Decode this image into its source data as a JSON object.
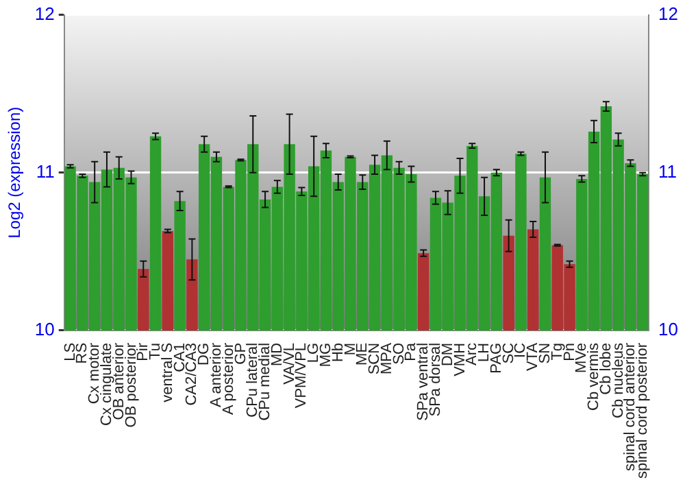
{
  "chart_data": {
    "type": "bar",
    "ylabel": "Log2 (expression)",
    "categories": [
      "LS",
      "RS",
      "Cx motor",
      "Cx cingulate",
      "OB anterior",
      "OB posterior",
      "Pir",
      "Tu",
      "ventral S",
      "CA1",
      "CA2/CA3",
      "DG",
      "A anterior",
      "A posterior",
      "GP",
      "CPu lateral",
      "CPu medial",
      "MD",
      "VA/VL",
      "VPM/VPL",
      "LG",
      "MG",
      "Hb",
      "M",
      "ME",
      "SCN",
      "MPA",
      "SO",
      "Pa",
      "SPa ventral",
      "SPa dorsal",
      "DM",
      "VMH",
      "Arc",
      "LH",
      "PAG",
      "SC",
      "IC",
      "VTA",
      "SN",
      "Tg",
      "Pn",
      "MVe",
      "Cb vermis",
      "Cb lobe",
      "Cb nucleus",
      "spinal cord anterior",
      "spinal cord posterior"
    ],
    "values": [
      11.04,
      10.98,
      10.94,
      11.02,
      11.03,
      10.97,
      10.39,
      11.23,
      10.63,
      10.82,
      10.45,
      11.18,
      11.1,
      10.91,
      11.08,
      11.18,
      10.83,
      10.91,
      11.18,
      10.88,
      11.04,
      11.14,
      10.94,
      11.1,
      10.94,
      11.05,
      11.11,
      11.03,
      10.99,
      10.49,
      10.84,
      10.81,
      10.98,
      11.17,
      10.85,
      11.0,
      10.6,
      11.12,
      10.64,
      10.97,
      10.54,
      10.42,
      10.96,
      11.26,
      11.42,
      11.21,
      11.06,
      10.99
    ],
    "errors": [
      0.01,
      0.01,
      0.13,
      0.11,
      0.07,
      0.04,
      0.05,
      0.02,
      0.01,
      0.06,
      0.13,
      0.05,
      0.03,
      0.005,
      0.005,
      0.18,
      0.05,
      0.04,
      0.19,
      0.025,
      0.19,
      0.045,
      0.05,
      0.005,
      0.045,
      0.06,
      0.09,
      0.04,
      0.05,
      0.02,
      0.04,
      0.075,
      0.11,
      0.015,
      0.12,
      0.02,
      0.1,
      0.01,
      0.05,
      0.16,
      0.005,
      0.02,
      0.02,
      0.07,
      0.03,
      0.04,
      0.02,
      0.01
    ],
    "colors": [
      "#2e9e2e",
      "#2e9e2e",
      "#2e9e2e",
      "#2e9e2e",
      "#2e9e2e",
      "#2e9e2e",
      "#b03232",
      "#2e9e2e",
      "#b03232",
      "#2e9e2e",
      "#b03232",
      "#2e9e2e",
      "#2e9e2e",
      "#2e9e2e",
      "#2e9e2e",
      "#2e9e2e",
      "#2e9e2e",
      "#2e9e2e",
      "#2e9e2e",
      "#2e9e2e",
      "#2e9e2e",
      "#2e9e2e",
      "#2e9e2e",
      "#2e9e2e",
      "#2e9e2e",
      "#2e9e2e",
      "#2e9e2e",
      "#2e9e2e",
      "#2e9e2e",
      "#b03232",
      "#2e9e2e",
      "#2e9e2e",
      "#2e9e2e",
      "#2e9e2e",
      "#2e9e2e",
      "#2e9e2e",
      "#b03232",
      "#2e9e2e",
      "#b03232",
      "#2e9e2e",
      "#b03232",
      "#b03232",
      "#2e9e2e",
      "#2e9e2e",
      "#2e9e2e",
      "#2e9e2e",
      "#2e9e2e",
      "#2e9e2e"
    ],
    "ylim": [
      10,
      12
    ],
    "yticks": [
      10,
      11,
      12
    ],
    "y2lim": [
      10,
      12
    ],
    "y2ticks": [
      10,
      11,
      12
    ],
    "grid": "y",
    "legend": false
  }
}
